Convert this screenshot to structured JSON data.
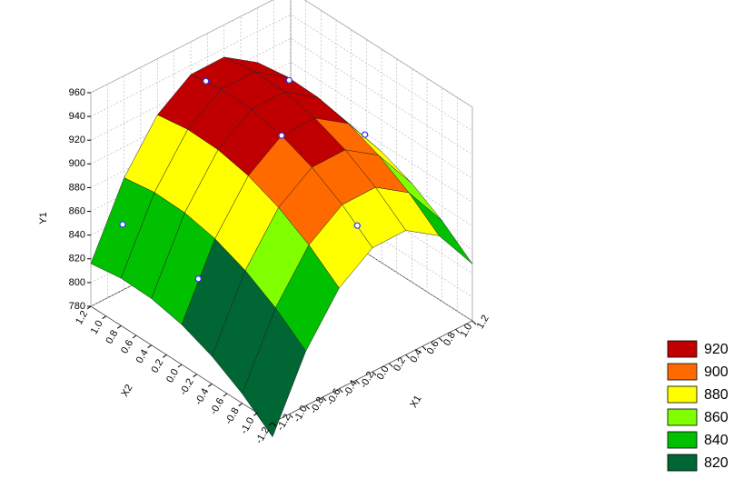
{
  "chart_data": {
    "type": "surface",
    "x_label": "X1",
    "y_label": "X2",
    "z_label": "Y1",
    "xlim": [
      -1.2,
      1.2
    ],
    "ylim": [
      -1.2,
      1.2
    ],
    "zlim": [
      780,
      960
    ],
    "xticks": [
      -1.2,
      {
        "value": -1.0,
        "label": "-1.0"
      },
      -0.8,
      -0.6,
      -0.4,
      -0.2,
      {
        "value": 0,
        "label": "0.0"
      },
      0.2,
      0.4,
      0.6,
      0.8,
      {
        "value": 1.0,
        "label": "1.0"
      },
      1.2
    ],
    "yticks": [
      -1.2,
      {
        "value": -1.0,
        "label": "-1.0"
      },
      -0.8,
      -0.6,
      -0.4,
      -0.2,
      {
        "value": 0,
        "label": "0.0"
      },
      0.2,
      0.4,
      0.6,
      0.8,
      {
        "value": 1.0,
        "label": "1.0"
      },
      1.2
    ],
    "zticks": [
      780,
      800,
      820,
      840,
      860,
      880,
      900,
      920,
      940,
      960
    ],
    "grid": true,
    "grid_x": [
      -1.2,
      -0.8,
      -0.4,
      0,
      0.4,
      0.8,
      1.2
    ],
    "grid_y": [
      -1.2,
      -0.8,
      -0.4,
      0,
      0.4,
      0.8,
      1.2
    ],
    "z": [
      [
        768,
        826,
        864.8,
        884.4,
        884.8,
        866,
        828
      ],
      [
        788,
        846,
        884.8,
        904.4,
        904.8,
        886,
        848
      ],
      [
        803.2,
        861.2,
        900,
        919.6,
        920,
        901.2,
        863.2
      ],
      [
        813.6,
        871.6,
        910.4,
        930,
        930.4,
        911.6,
        873.6
      ],
      [
        819.2,
        877.2,
        916,
        935.6,
        936,
        917.2,
        879.2
      ],
      [
        820,
        878,
        916.8,
        936.4,
        936.8,
        918,
        880
      ],
      [
        816,
        874,
        912.8,
        932.4,
        932.8,
        914,
        876
      ]
    ],
    "points": {
      "x": [
        -1,
        -1,
        0,
        0,
        1,
        1,
        0
      ],
      "y": [
        1,
        0,
        1,
        0,
        1,
        0,
        -1
      ],
      "z": [
        850,
        845,
        935,
        930,
        900,
        895,
        895
      ],
      "color": "#3333ff"
    },
    "legend_position": "lower right",
    "levels": [
      {
        "value": 920,
        "color": "#c00000"
      },
      {
        "value": 900,
        "color": "#ff6a00"
      },
      {
        "value": 880,
        "color": "#ffff00"
      },
      {
        "value": 860,
        "color": "#80ff00"
      },
      {
        "value": 840,
        "color": "#00c000"
      },
      {
        "value": 820,
        "color": "#006633"
      }
    ]
  }
}
